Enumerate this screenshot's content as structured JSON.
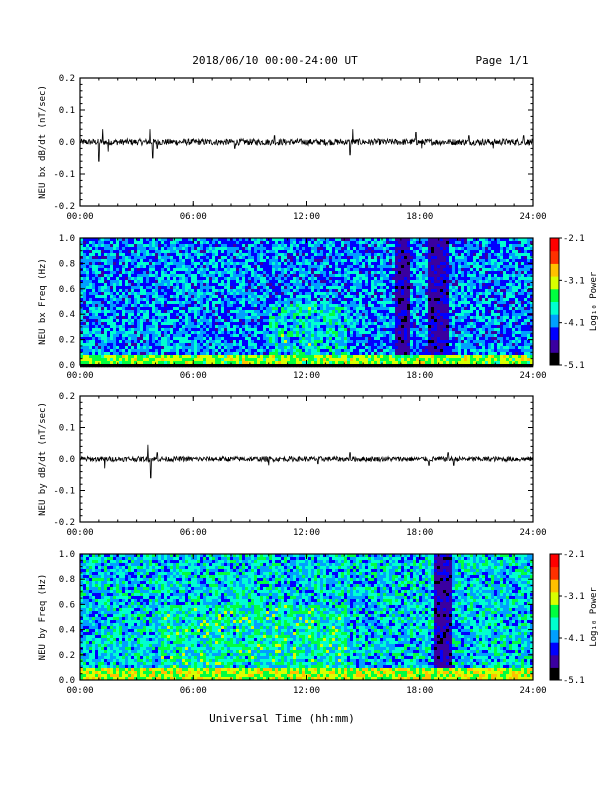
{
  "header": {
    "title": "2018/06/10  00:00-24:00 UT",
    "page": "Page 1/1"
  },
  "footer": {
    "xlabel": "Universal Time (hh:mm)"
  },
  "colorbar": {
    "label": "Log₁₀ Power",
    "ticks": [
      "-2.1",
      "-3.1",
      "-4.1",
      "-5.1"
    ],
    "range": [
      -5.1,
      -2.1
    ],
    "colors": [
      "#000000",
      "#3a00a0",
      "#0000ff",
      "#00a0ff",
      "#00ffd0",
      "#00ff40",
      "#d8ff00",
      "#ffc000",
      "#ff3000",
      "#ff0000"
    ]
  },
  "chart_data": [
    {
      "type": "line",
      "ylabel": "NEU bx dB/dt (nT/sec)",
      "xticks": [
        "00:00",
        "06:00",
        "12:00",
        "18:00",
        "24:00"
      ],
      "xlim": [
        0,
        24
      ],
      "yticks": [
        "0.2",
        "0.1",
        "0.0",
        "-0.1",
        "-0.2"
      ],
      "ylim": [
        -0.2,
        0.2
      ],
      "noise_amplitude": 0.01,
      "spikes": [
        {
          "t": 1.0,
          "v": -0.06
        },
        {
          "t": 1.2,
          "v": 0.04
        },
        {
          "t": 1.5,
          "v": -0.03
        },
        {
          "t": 3.7,
          "v": 0.04
        },
        {
          "t": 3.85,
          "v": -0.05
        },
        {
          "t": 4.1,
          "v": -0.02
        },
        {
          "t": 8.2,
          "v": -0.02
        },
        {
          "t": 10.3,
          "v": 0.02
        },
        {
          "t": 14.3,
          "v": -0.04
        },
        {
          "t": 14.45,
          "v": 0.04
        },
        {
          "t": 17.8,
          "v": 0.03
        },
        {
          "t": 18.1,
          "v": -0.02
        },
        {
          "t": 20.6,
          "v": 0.02
        },
        {
          "t": 21.9,
          "v": -0.02
        },
        {
          "t": 23.5,
          "v": 0.02
        }
      ]
    },
    {
      "type": "heatmap",
      "ylabel": "NEU bx Freq (Hz)",
      "xticks": [
        "00:00",
        "06:00",
        "12:00",
        "18:00",
        "24:00"
      ],
      "xlim": [
        0,
        24
      ],
      "yticks": [
        "1.0",
        "0.8",
        "0.6",
        "0.4",
        "0.2",
        "0.0"
      ],
      "ylim": [
        0,
        1.0
      ],
      "zlim": [
        -5.1,
        -2.1
      ],
      "base_log_power": -4.1,
      "low_freq_enhancement": [
        {
          "f_max": 0.08,
          "log_power": -3.3
        }
      ],
      "quiet_bands": [
        {
          "t_start": 16.6,
          "t_end": 17.4,
          "f_min": 0.05,
          "log_power": -4.6
        },
        {
          "t_start": 18.4,
          "t_end": 19.5,
          "f_min": 0.05,
          "log_power": -4.6
        }
      ],
      "active_regions": [
        {
          "t_start": 10.0,
          "t_end": 14.0,
          "f_max": 0.5,
          "log_power": -3.6
        }
      ]
    },
    {
      "type": "line",
      "ylabel": "NEU by dB/dt (nT/sec)",
      "xticks": [
        "00:00",
        "06:00",
        "12:00",
        "18:00",
        "24:00"
      ],
      "xlim": [
        0,
        24
      ],
      "yticks": [
        "0.2",
        "0.1",
        "0.0",
        "-0.1",
        "-0.2"
      ],
      "ylim": [
        -0.2,
        0.2
      ],
      "noise_amplitude": 0.008,
      "spikes": [
        {
          "t": 1.3,
          "v": -0.03
        },
        {
          "t": 3.6,
          "v": 0.045
        },
        {
          "t": 3.75,
          "v": -0.06
        },
        {
          "t": 4.1,
          "v": 0.02
        },
        {
          "t": 10.0,
          "v": -0.02
        },
        {
          "t": 12.6,
          "v": -0.015
        },
        {
          "t": 14.3,
          "v": 0.02
        },
        {
          "t": 18.5,
          "v": -0.02
        },
        {
          "t": 19.5,
          "v": 0.02
        },
        {
          "t": 19.8,
          "v": -0.02
        }
      ]
    },
    {
      "type": "heatmap",
      "ylabel": "NEU by Freq (Hz)",
      "xticks": [
        "00:00",
        "06:00",
        "12:00",
        "18:00",
        "24:00"
      ],
      "xlim": [
        0,
        24
      ],
      "yticks": [
        "1.0",
        "0.8",
        "0.6",
        "0.4",
        "0.2",
        "0.0"
      ],
      "ylim": [
        0,
        1.0
      ],
      "zlim": [
        -5.1,
        -2.1
      ],
      "base_log_power": -3.9,
      "low_freq_enhancement": [
        {
          "f_max": 0.1,
          "log_power": -3.2
        }
      ],
      "quiet_bands": [
        {
          "t_start": 18.7,
          "t_end": 19.7,
          "f_min": 0.1,
          "log_power": -4.6
        }
      ],
      "active_regions": [
        {
          "t_start": 4.0,
          "t_end": 14.0,
          "f_max": 0.6,
          "log_power": -3.5
        }
      ]
    }
  ]
}
